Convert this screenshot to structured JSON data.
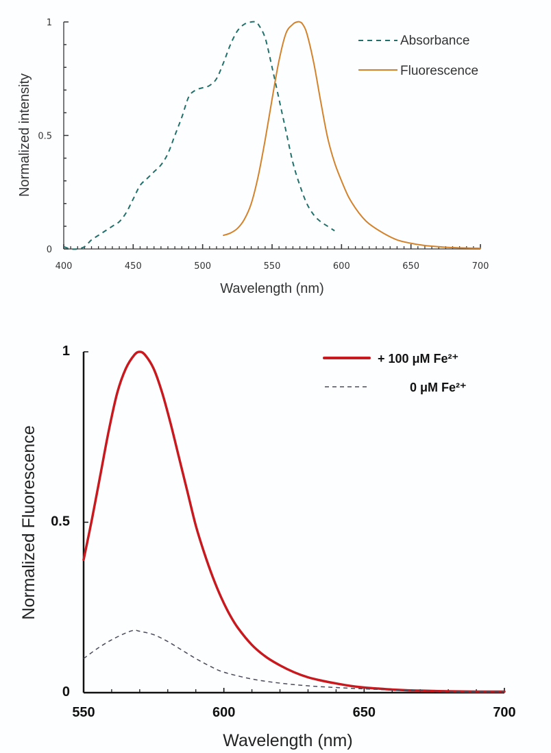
{
  "chart_data": [
    {
      "type": "line",
      "title": "",
      "xlabel": "Wavelength (nm)",
      "ylabel": "Normalized intensity",
      "xlim": [
        400,
        700
      ],
      "ylim": [
        0,
        1
      ],
      "xticks": [
        400,
        450,
        500,
        550,
        600,
        650,
        700
      ],
      "xtick_labels": [
        "400",
        "450",
        "500",
        "550",
        "600",
        "650",
        "700"
      ],
      "yticks": [
        0,
        0.5,
        1
      ],
      "ytick_labels": [
        "0",
        "0.5",
        "1"
      ],
      "x_minor_step": 5,
      "y_minor_step": 0.1,
      "grid": false,
      "legend_position": "top-right",
      "series": [
        {
          "name": "Absorbance",
          "style": "dashed",
          "color": "#1f6f6a",
          "x": [
            400,
            405,
            410,
            415,
            420,
            425,
            430,
            435,
            440,
            445,
            450,
            455,
            460,
            465,
            470,
            475,
            480,
            485,
            490,
            495,
            500,
            505,
            510,
            515,
            520,
            525,
            530,
            535,
            538,
            540,
            545,
            550,
            555,
            560,
            565,
            570,
            575,
            580,
            585,
            590,
            595
          ],
          "y": [
            0.01,
            0.0,
            0.0,
            0.01,
            0.04,
            0.06,
            0.08,
            0.1,
            0.12,
            0.16,
            0.22,
            0.28,
            0.31,
            0.34,
            0.37,
            0.42,
            0.5,
            0.58,
            0.67,
            0.7,
            0.71,
            0.72,
            0.75,
            0.82,
            0.9,
            0.96,
            0.99,
            1.0,
            1.0,
            0.99,
            0.93,
            0.8,
            0.66,
            0.52,
            0.38,
            0.28,
            0.2,
            0.15,
            0.12,
            0.1,
            0.08
          ]
        },
        {
          "name": "Fluorescence",
          "style": "solid",
          "color": "#d4822a",
          "x": [
            515,
            520,
            525,
            530,
            535,
            540,
            545,
            550,
            555,
            560,
            565,
            568,
            570,
            572,
            575,
            580,
            585,
            590,
            595,
            600,
            605,
            610,
            615,
            620,
            630,
            640,
            650,
            660,
            670,
            680,
            690,
            700
          ],
          "y": [
            0.06,
            0.07,
            0.09,
            0.13,
            0.2,
            0.32,
            0.48,
            0.66,
            0.83,
            0.95,
            0.99,
            1.0,
            1.0,
            0.99,
            0.95,
            0.82,
            0.65,
            0.49,
            0.38,
            0.3,
            0.23,
            0.18,
            0.14,
            0.11,
            0.07,
            0.04,
            0.025,
            0.015,
            0.01,
            0.006,
            0.004,
            0.003
          ]
        }
      ]
    },
    {
      "type": "line",
      "title": "",
      "xlabel": "Wavelength (nm)",
      "ylabel": "Normalized Fluorescence",
      "xlim": [
        550,
        700
      ],
      "ylim": [
        0,
        1
      ],
      "xticks": [
        550,
        600,
        650,
        700
      ],
      "xtick_labels": [
        "550",
        "600",
        "650",
        "700"
      ],
      "yticks": [
        0,
        0.5,
        1
      ],
      "ytick_labels": [
        "0",
        "0.5",
        "1"
      ],
      "x_minor_step": 10,
      "grid": false,
      "legend_position": "top-right",
      "series": [
        {
          "name": "+ 100 μM Fe²⁺",
          "style": "solid",
          "color": "#c8191e",
          "x": [
            550,
            553,
            556,
            559,
            562,
            565,
            568,
            570,
            572,
            575,
            578,
            581,
            584,
            587,
            590,
            593,
            596,
            599,
            602,
            605,
            610,
            615,
            620,
            625,
            630,
            635,
            640,
            645,
            650,
            655,
            660,
            665,
            670,
            680,
            690,
            700
          ],
          "y": [
            0.39,
            0.51,
            0.64,
            0.77,
            0.88,
            0.95,
            0.99,
            1.0,
            0.99,
            0.95,
            0.88,
            0.79,
            0.69,
            0.59,
            0.49,
            0.41,
            0.34,
            0.28,
            0.23,
            0.19,
            0.14,
            0.105,
            0.08,
            0.06,
            0.045,
            0.035,
            0.027,
            0.02,
            0.015,
            0.012,
            0.009,
            0.007,
            0.006,
            0.004,
            0.003,
            0.003
          ]
        },
        {
          "name": "0 μM Fe²⁺",
          "style": "dashed",
          "color": "#4a4a5a",
          "x": [
            550,
            555,
            560,
            565,
            568,
            570,
            575,
            580,
            585,
            590,
            595,
            600,
            610,
            620,
            630,
            640,
            650,
            660,
            670,
            680,
            690,
            700
          ],
          "y": [
            0.1,
            0.13,
            0.155,
            0.175,
            0.183,
            0.18,
            0.17,
            0.15,
            0.125,
            0.1,
            0.078,
            0.06,
            0.04,
            0.028,
            0.02,
            0.015,
            0.011,
            0.008,
            0.006,
            0.004,
            0.003,
            0.002
          ]
        }
      ]
    }
  ]
}
